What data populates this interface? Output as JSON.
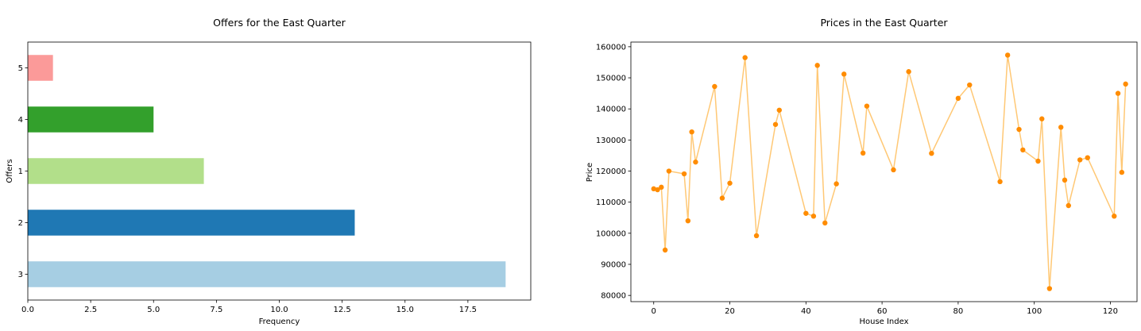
{
  "chart_data": [
    {
      "type": "bar",
      "orientation": "horizontal",
      "title": "Offers for the East Quarter",
      "xlabel": "Frequency",
      "ylabel": "Offers",
      "categories": [
        "3",
        "2",
        "1",
        "4",
        "5"
      ],
      "values": [
        19,
        13,
        7,
        5,
        1
      ],
      "colors": [
        "#a6cee3",
        "#1f78b4",
        "#b2df8a",
        "#33a02c",
        "#fb9a99"
      ],
      "xlim": [
        0,
        20
      ],
      "xticks": [
        "0.0",
        "2.5",
        "5.0",
        "7.5",
        "10.0",
        "12.5",
        "15.0",
        "17.5"
      ],
      "grid": false
    },
    {
      "type": "line",
      "markers": true,
      "title": "Prices in the East Quarter",
      "xlabel": "House Index",
      "ylabel": "Price",
      "line_color": "#ffc875",
      "marker_color": "#ff8c00",
      "xlim": [
        -6,
        127
      ],
      "ylim": [
        78000,
        161500
      ],
      "xticks": [
        "0",
        "20",
        "40",
        "60",
        "80",
        "100",
        "120"
      ],
      "yticks": [
        "80000",
        "90000",
        "100000",
        "110000",
        "120000",
        "130000",
        "140000",
        "150000",
        "160000"
      ],
      "grid": false,
      "x": [
        0,
        1,
        2,
        3,
        4,
        8,
        9,
        10,
        11,
        16,
        18,
        20,
        24,
        27,
        32,
        33,
        40,
        42,
        43,
        45,
        48,
        50,
        55,
        56,
        63,
        67,
        73,
        80,
        83,
        91,
        93,
        96,
        97,
        101,
        102,
        104,
        107,
        108,
        109,
        112,
        114,
        121,
        122,
        123,
        124
      ],
      "y": [
        114300,
        114000,
        114800,
        94600,
        120000,
        119100,
        104000,
        132600,
        122900,
        147200,
        111300,
        116100,
        156500,
        99200,
        135000,
        139600,
        106400,
        105500,
        154000,
        103300,
        115900,
        151200,
        125800,
        140900,
        120400,
        152000,
        125700,
        143400,
        147700,
        116600,
        157300,
        133400,
        126800,
        123200,
        136800,
        82200,
        134100,
        117100,
        108900,
        123600,
        124300,
        105500,
        145000,
        119600,
        148000
      ]
    }
  ]
}
